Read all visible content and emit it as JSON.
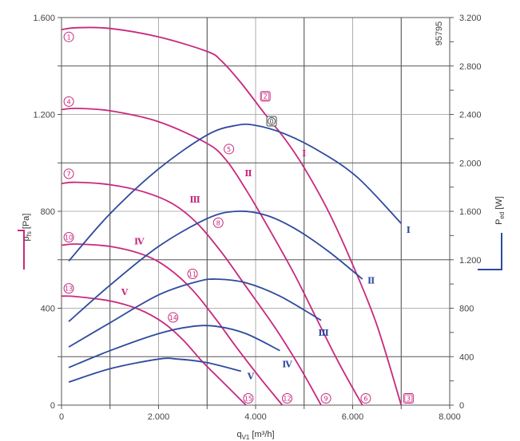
{
  "chart_data": {
    "type": "line",
    "figure_id": "95795",
    "xlabel_main": "q",
    "xlabel_sub": "V1",
    "xlabel_unit": "[m³/h]",
    "ylabel_left_main": "p",
    "ylabel_left_sub": "fs",
    "ylabel_left_unit": "[Pa]",
    "ylabel_right_main": "P",
    "ylabel_right_sub": "ed",
    "ylabel_right_unit": "[W]",
    "xlim": [
      0,
      8000
    ],
    "ylim_left": [
      0,
      1600
    ],
    "ylim_right": [
      0,
      3200
    ],
    "x_ticks": [
      0,
      1000,
      2000,
      3000,
      4000,
      5000,
      6000,
      7000,
      8000
    ],
    "x_tick_labels": [
      "0",
      "",
      "2.000",
      "",
      "4.000",
      "",
      "6.000",
      "",
      "8.000"
    ],
    "y_left_ticks": [
      0,
      200,
      400,
      600,
      800,
      1000,
      1200,
      1400,
      1600
    ],
    "y_left_tick_labels": [
      "0",
      "",
      "400",
      "",
      "800",
      "",
      "1.200",
      "",
      "1.600"
    ],
    "y_right_ticks": [
      0,
      200,
      400,
      600,
      800,
      1000,
      1200,
      1400,
      1600,
      1800,
      2000,
      2200,
      2400,
      2600,
      2800,
      3000,
      3200
    ],
    "y_right_tick_labels": [
      "0",
      "",
      "400",
      "",
      "800",
      "",
      "1.200",
      "",
      "1.600",
      "",
      "2.000",
      "",
      "2.400",
      "",
      "2.800",
      "",
      "3.200"
    ],
    "grid": true,
    "colors": {
      "pressure": "#c8287d",
      "power": "#2e4a9e",
      "grid": "#777777"
    },
    "pressure_curves": [
      {
        "x": [
          0,
          300,
          1000,
          2000,
          3000,
          3300,
          3700,
          4200,
          4600,
          5000,
          5500,
          6000,
          6500,
          7000
        ],
        "y": [
          1550,
          1558,
          1555,
          1520,
          1460,
          1420,
          1330,
          1200,
          1100,
          980,
          800,
          580,
          330,
          0
        ]
      },
      {
        "x": [
          0,
          300,
          1000,
          2000,
          3000,
          3400,
          3800,
          4300,
          4800,
          5200,
          5700,
          6200
        ],
        "y": [
          1220,
          1225,
          1215,
          1170,
          1080,
          1010,
          890,
          720,
          540,
          380,
          180,
          0
        ]
      },
      {
        "x": [
          0,
          300,
          1000,
          1700,
          2300,
          2800,
          3300,
          3800,
          4400,
          4900,
          5350
        ],
        "y": [
          915,
          920,
          910,
          880,
          830,
          750,
          630,
          490,
          320,
          160,
          0
        ]
      },
      {
        "x": [
          0,
          300,
          1000,
          1700,
          2200,
          2700,
          3200,
          3600,
          4100,
          4550
        ],
        "y": [
          660,
          665,
          655,
          620,
          565,
          475,
          350,
          240,
          110,
          0
        ]
      },
      {
        "x": [
          0,
          300,
          1000,
          1600,
          2100,
          2500,
          2900,
          3300,
          3800
        ],
        "y": [
          450,
          448,
          430,
          395,
          340,
          270,
          180,
          100,
          0
        ]
      }
    ],
    "power_curves": [
      {
        "x": [
          150,
          1000,
          2000,
          3000,
          3600,
          4000,
          4600,
          5300,
          6100,
          7000
        ],
        "y": [
          1190,
          1580,
          1950,
          2230,
          2310,
          2310,
          2240,
          2100,
          1880,
          1500
        ]
      },
      {
        "x": [
          150,
          1000,
          2000,
          3000,
          3600,
          4200,
          4800,
          5500,
          6200
        ],
        "y": [
          690,
          990,
          1310,
          1540,
          1600,
          1570,
          1460,
          1270,
          1040
        ]
      },
      {
        "x": [
          150,
          1000,
          2000,
          2800,
          3200,
          3800,
          4500,
          5350
        ],
        "y": [
          480,
          680,
          910,
          1020,
          1040,
          1010,
          900,
          700
        ]
      },
      {
        "x": [
          150,
          1000,
          2000,
          2700,
          3200,
          3800,
          4500
        ],
        "y": [
          310,
          450,
          590,
          650,
          650,
          590,
          450
        ]
      },
      {
        "x": [
          150,
          1000,
          2000,
          2400,
          3000,
          3700
        ],
        "y": [
          190,
          300,
          380,
          380,
          350,
          280
        ]
      }
    ],
    "point_markers": [
      {
        "label": "1",
        "x": 150,
        "y": 1520,
        "style": "circle"
      },
      {
        "label": "2",
        "x": 4200,
        "y": 1275,
        "style": "square"
      },
      {
        "label": "3",
        "x": 7150,
        "y": 28,
        "style": "square"
      },
      {
        "label": "4",
        "x": 150,
        "y": 1253,
        "style": "circle"
      },
      {
        "label": "5",
        "x": 3450,
        "y": 1057,
        "style": "circle"
      },
      {
        "label": "6",
        "x": 6270,
        "y": 28,
        "style": "circle"
      },
      {
        "label": "7",
        "x": 150,
        "y": 955,
        "style": "circle"
      },
      {
        "label": "8",
        "x": 3230,
        "y": 753,
        "style": "circle"
      },
      {
        "label": "9",
        "x": 5450,
        "y": 28,
        "style": "circle"
      },
      {
        "label": "10",
        "x": 150,
        "y": 693,
        "style": "circle"
      },
      {
        "label": "11",
        "x": 2700,
        "y": 542,
        "style": "circle"
      },
      {
        "label": "12",
        "x": 4650,
        "y": 28,
        "style": "circle"
      },
      {
        "label": "13",
        "x": 150,
        "y": 482,
        "style": "circle"
      },
      {
        "label": "14",
        "x": 2300,
        "y": 362,
        "style": "circle"
      },
      {
        "label": "15",
        "x": 3850,
        "y": 28,
        "style": "circle"
      },
      {
        "label": "0",
        "x": 4330,
        "y": 1172,
        "style": "square"
      }
    ],
    "roman_labels": [
      {
        "label": "I",
        "x": 5000,
        "y": 1040,
        "axis": "left"
      },
      {
        "label": "II",
        "x": 3850,
        "y": 958,
        "axis": "left"
      },
      {
        "label": "III",
        "x": 2750,
        "y": 850,
        "axis": "left"
      },
      {
        "label": "IV",
        "x": 1600,
        "y": 676,
        "axis": "left"
      },
      {
        "label": "V",
        "x": 1300,
        "y": 468,
        "axis": "left"
      },
      {
        "label": "I",
        "x": 7150,
        "y": 1450,
        "axis": "right"
      },
      {
        "label": "II",
        "x": 6380,
        "y": 1030,
        "axis": "right"
      },
      {
        "label": "III",
        "x": 5400,
        "y": 600,
        "axis": "right"
      },
      {
        "label": "IV",
        "x": 4650,
        "y": 340,
        "axis": "right"
      },
      {
        "label": "V",
        "x": 3900,
        "y": 240,
        "axis": "right"
      }
    ]
  }
}
